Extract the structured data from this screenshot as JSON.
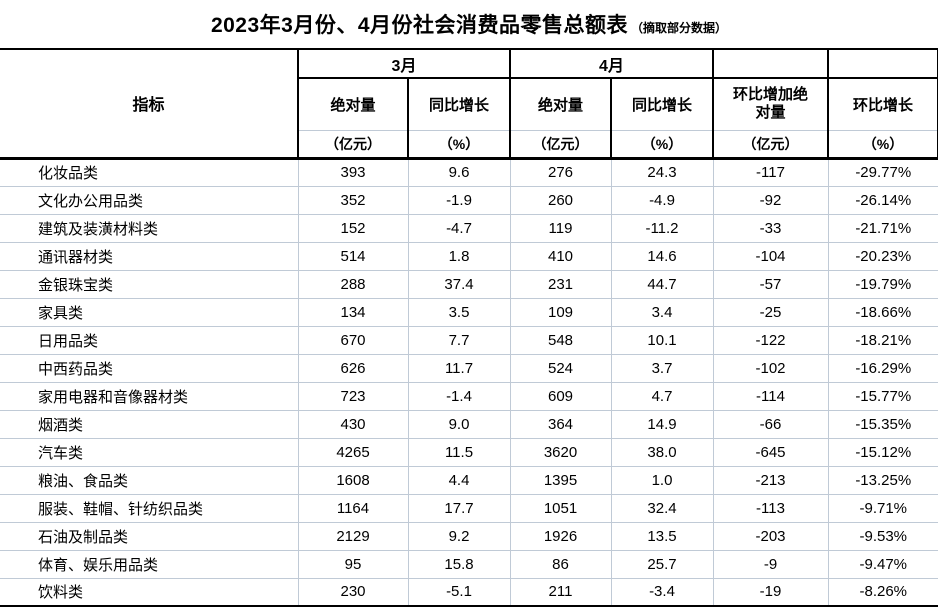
{
  "title": {
    "main": "2023年3月份、4月份社会消费品零售总额表",
    "note": "（摘取部分数据）"
  },
  "table": {
    "corner": "指标",
    "groups": {
      "march": "3月",
      "april": "4月"
    },
    "headers": {
      "abs": "绝对量",
      "yoy": "同比增长",
      "mom_abs": "环比增加绝对量",
      "mom_growth": "环比增长"
    },
    "units": {
      "amount": "（亿元）",
      "percent": "（%）"
    },
    "rows": [
      {
        "name": "化妆品类",
        "m3_abs": "393",
        "m3_yoy": "9.6",
        "m4_abs": "276",
        "m4_yoy": "24.3",
        "mom_abs": "-117",
        "mom_pct": "-29.77%"
      },
      {
        "name": "文化办公用品类",
        "m3_abs": "352",
        "m3_yoy": "-1.9",
        "m4_abs": "260",
        "m4_yoy": "-4.9",
        "mom_abs": "-92",
        "mom_pct": "-26.14%"
      },
      {
        "name": "建筑及装潢材料类",
        "m3_abs": "152",
        "m3_yoy": "-4.7",
        "m4_abs": "119",
        "m4_yoy": "-11.2",
        "mom_abs": "-33",
        "mom_pct": "-21.71%"
      },
      {
        "name": "通讯器材类",
        "m3_abs": "514",
        "m3_yoy": "1.8",
        "m4_abs": "410",
        "m4_yoy": "14.6",
        "mom_abs": "-104",
        "mom_pct": "-20.23%"
      },
      {
        "name": "金银珠宝类",
        "m3_abs": "288",
        "m3_yoy": "37.4",
        "m4_abs": "231",
        "m4_yoy": "44.7",
        "mom_abs": "-57",
        "mom_pct": "-19.79%"
      },
      {
        "name": "家具类",
        "m3_abs": "134",
        "m3_yoy": "3.5",
        "m4_abs": "109",
        "m4_yoy": "3.4",
        "mom_abs": "-25",
        "mom_pct": "-18.66%"
      },
      {
        "name": "日用品类",
        "m3_abs": "670",
        "m3_yoy": "7.7",
        "m4_abs": "548",
        "m4_yoy": "10.1",
        "mom_abs": "-122",
        "mom_pct": "-18.21%"
      },
      {
        "name": "中西药品类",
        "m3_abs": "626",
        "m3_yoy": "11.7",
        "m4_abs": "524",
        "m4_yoy": "3.7",
        "mom_abs": "-102",
        "mom_pct": "-16.29%"
      },
      {
        "name": "家用电器和音像器材类",
        "m3_abs": "723",
        "m3_yoy": "-1.4",
        "m4_abs": "609",
        "m4_yoy": "4.7",
        "mom_abs": "-114",
        "mom_pct": "-15.77%"
      },
      {
        "name": "烟酒类",
        "m3_abs": "430",
        "m3_yoy": "9.0",
        "m4_abs": "364",
        "m4_yoy": "14.9",
        "mom_abs": "-66",
        "mom_pct": "-15.35%"
      },
      {
        "name": "汽车类",
        "m3_abs": "4265",
        "m3_yoy": "11.5",
        "m4_abs": "3620",
        "m4_yoy": "38.0",
        "mom_abs": "-645",
        "mom_pct": "-15.12%"
      },
      {
        "name": "粮油、食品类",
        "m3_abs": "1608",
        "m3_yoy": "4.4",
        "m4_abs": "1395",
        "m4_yoy": "1.0",
        "mom_abs": "-213",
        "mom_pct": "-13.25%"
      },
      {
        "name": "服装、鞋帽、针纺织品类",
        "m3_abs": "1164",
        "m3_yoy": "17.7",
        "m4_abs": "1051",
        "m4_yoy": "32.4",
        "mom_abs": "-113",
        "mom_pct": "-9.71%"
      },
      {
        "name": "石油及制品类",
        "m3_abs": "2129",
        "m3_yoy": "9.2",
        "m4_abs": "1926",
        "m4_yoy": "13.5",
        "mom_abs": "-203",
        "mom_pct": "-9.53%"
      },
      {
        "name": "体育、娱乐用品类",
        "m3_abs": "95",
        "m3_yoy": "15.8",
        "m4_abs": "86",
        "m4_yoy": "25.7",
        "mom_abs": "-9",
        "mom_pct": "-9.47%"
      },
      {
        "name": "饮料类",
        "m3_abs": "230",
        "m3_yoy": "-5.1",
        "m4_abs": "211",
        "m4_yoy": "-3.4",
        "mom_abs": "-19",
        "mom_pct": "-8.26%"
      }
    ]
  },
  "colors": {
    "grid_line": "#c0cad6",
    "header_border": "#000000",
    "background": "#ffffff",
    "text": "#000000"
  }
}
